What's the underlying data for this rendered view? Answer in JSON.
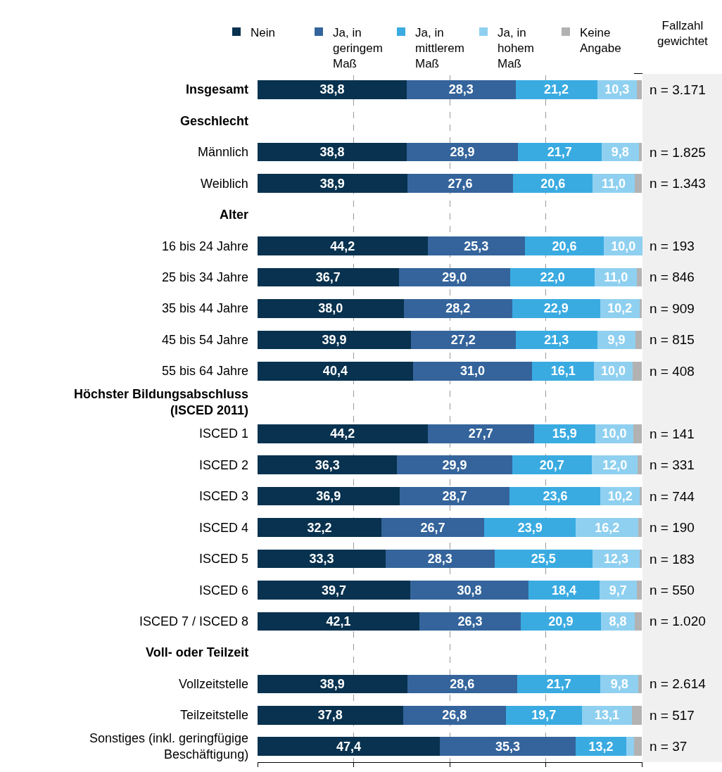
{
  "chart_data": {
    "type": "bar",
    "orientation": "horizontal",
    "stacked": true,
    "categories": [
      "Insgesamt",
      "Geschlecht",
      "Männlich",
      "Weiblich",
      "Alter",
      "16 bis 24 Jahre",
      "25 bis 34 Jahre",
      "35 bis 44 Jahre",
      "45 bis 54 Jahre",
      "55 bis 64 Jahre",
      "Höchster Bildungsabschluss (ISCED 2011)",
      "ISCED 1",
      "ISCED 2",
      "ISCED 3",
      "ISCED 4",
      "ISCED 5",
      "ISCED 6",
      "ISCED 7 / ISCED 8",
      "Voll- oder Teilzeit",
      "Vollzeitstelle",
      "Teilzeitstelle",
      "Sonstiges (inkl. geringfügige Beschäftigung)"
    ],
    "series": [
      {
        "name": "Nein",
        "color": "#08324f",
        "values": [
          38.8,
          null,
          38.8,
          38.9,
          null,
          44.2,
          36.7,
          38.0,
          39.9,
          40.4,
          null,
          44.2,
          36.3,
          36.9,
          32.2,
          33.3,
          39.7,
          42.1,
          null,
          38.9,
          37.8,
          47.4
        ],
        "value_labels": [
          "38,8",
          null,
          "38,8",
          "38,9",
          null,
          "44,2",
          "36,7",
          "38,0",
          "39,9",
          "40,4",
          null,
          "44,2",
          "36,3",
          "36,9",
          "32,2",
          "33,3",
          "39,7",
          "42,1",
          null,
          "38,9",
          "37,8",
          "47,4"
        ]
      },
      {
        "name": "Ja, in geringem Maß",
        "color": "#34649b",
        "values": [
          28.3,
          null,
          28.9,
          27.6,
          null,
          25.3,
          29.0,
          28.2,
          27.2,
          31.0,
          null,
          27.7,
          29.9,
          28.7,
          26.7,
          28.3,
          30.8,
          26.3,
          null,
          28.6,
          26.8,
          35.3
        ],
        "value_labels": [
          "28,3",
          null,
          "28,9",
          "27,6",
          null,
          "25,3",
          "29,0",
          "28,2",
          "27,2",
          "31,0",
          null,
          "27,7",
          "29,9",
          "28,7",
          "26,7",
          "28,3",
          "30,8",
          "26,3",
          null,
          "28,6",
          "26,8",
          "35,3"
        ]
      },
      {
        "name": "Ja, in mittlerem Maß",
        "color": "#3aabe1",
        "values": [
          21.2,
          null,
          21.7,
          20.6,
          null,
          20.6,
          22.0,
          22.9,
          21.3,
          16.1,
          null,
          15.9,
          20.7,
          23.6,
          23.9,
          25.5,
          18.4,
          20.9,
          null,
          21.7,
          19.7,
          13.2
        ],
        "value_labels": [
          "21,2",
          null,
          "21,7",
          "20,6",
          null,
          "20,6",
          "22,0",
          "22,9",
          "21,3",
          "16,1",
          null,
          "15,9",
          "20,7",
          "23,6",
          "23,9",
          "25,5",
          "18,4",
          "20,9",
          null,
          "21,7",
          "19,7",
          "13,2"
        ]
      },
      {
        "name": "Ja, in hohem Maß",
        "color": "#8fd0f0",
        "values": [
          10.3,
          null,
          9.8,
          11.0,
          null,
          10.0,
          11.0,
          10.2,
          9.9,
          10.0,
          null,
          10.0,
          12.0,
          10.2,
          16.2,
          12.3,
          9.7,
          8.8,
          null,
          9.8,
          13.1,
          2.0
        ],
        "value_labels": [
          "10,3",
          null,
          "9,8",
          "11,0",
          null,
          "10,0",
          "11,0",
          "10,2",
          "9,9",
          "10,0",
          null,
          "10,0",
          "12,0",
          "10,2",
          "16,2",
          "12,3",
          "9,7",
          "8,8",
          null,
          "9,8",
          "13,1",
          null
        ]
      },
      {
        "name": "Keine Angabe",
        "color": "#b2b2b2",
        "values": [
          1.4,
          null,
          0.8,
          1.9,
          null,
          null,
          1.3,
          0.7,
          1.7,
          2.5,
          null,
          2.2,
          1.1,
          0.6,
          1.0,
          0.6,
          1.4,
          1.9,
          null,
          1.0,
          2.6,
          2.1
        ]
      }
    ],
    "xlim": [
      0,
      100.1
    ],
    "xticks": [
      {
        "value": 0,
        "label": null
      },
      {
        "value": 25,
        "label": null
      },
      {
        "value": 50,
        "label": null
      },
      {
        "value": 75,
        "label": null
      },
      {
        "value": 100,
        "label": null
      }
    ],
    "grid": "x",
    "tick_labels": "y",
    "legend": "top",
    "annotations": [
      "Fallzahl gewichtet",
      "n = 3.171",
      "n = 1.825",
      "n = 1.343",
      "n = 193",
      "n = 846",
      "n = 909",
      "n = 815",
      "n = 408",
      "n = 141",
      "n = 331",
      "n = 744",
      "n = 190",
      "n = 183",
      "n = 550",
      "n = 1.020",
      "n = 2.614",
      "n = 517",
      "n = 37"
    ]
  }
}
